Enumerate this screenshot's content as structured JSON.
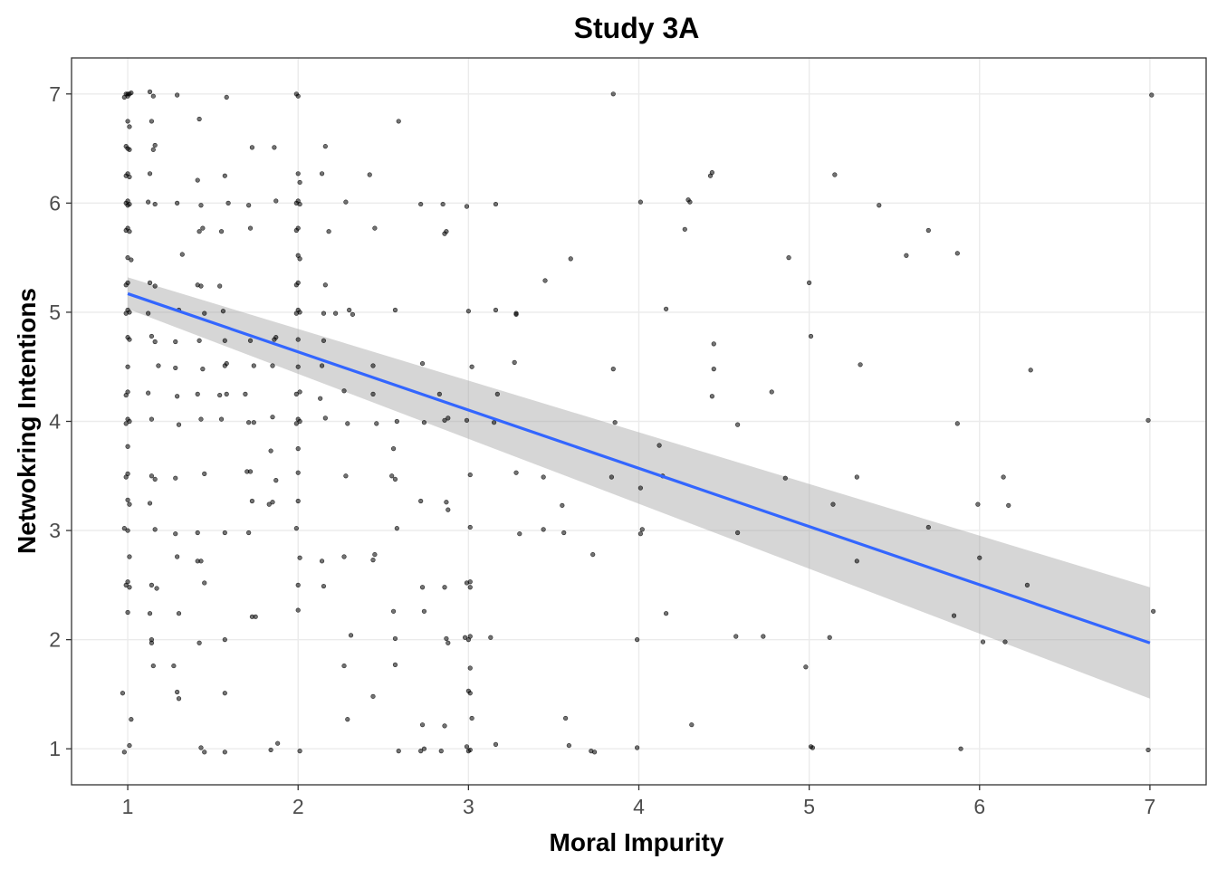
{
  "chart_data": {
    "type": "scatter",
    "title": "Study 3A",
    "xlabel": "Moral Impurity",
    "ylabel": "Netwokring Intentions",
    "xlim": [
      0.67,
      7.33
    ],
    "ylim": [
      0.67,
      7.33
    ],
    "xticks": [
      1,
      2,
      3,
      4,
      5,
      6,
      7
    ],
    "yticks": [
      1,
      2,
      3,
      4,
      5,
      6,
      7
    ],
    "grid": true,
    "colors": {
      "points": "#000000",
      "trend": "#3366FF",
      "band": "#999999",
      "grid": "#EBEBEB",
      "frame": "#333333"
    },
    "trend": {
      "x": [
        1,
        7
      ],
      "y": [
        5.17,
        1.97
      ],
      "ci_lower": [
        5.03,
        1.46
      ],
      "ci_upper": [
        5.32,
        2.48
      ]
    },
    "points": [
      [
        1,
        7
      ],
      [
        1.01,
        7
      ],
      [
        0.99,
        7
      ],
      [
        1,
        6.98
      ],
      [
        1.02,
        7.01
      ],
      [
        0.98,
        6.97
      ],
      [
        1,
        6.75
      ],
      [
        1.01,
        6.7
      ],
      [
        0.99,
        6.52
      ],
      [
        1,
        6.5
      ],
      [
        1.01,
        6.49
      ],
      [
        1,
        6.27
      ],
      [
        0.99,
        6.25
      ],
      [
        1.01,
        6.24
      ],
      [
        1,
        6.02
      ],
      [
        0.99,
        6
      ],
      [
        1.01,
        5.99
      ],
      [
        1,
        5.98
      ],
      [
        1,
        5.77
      ],
      [
        0.99,
        5.75
      ],
      [
        1.01,
        5.74
      ],
      [
        1,
        5.5
      ],
      [
        1.02,
        5.48
      ],
      [
        1,
        5.27
      ],
      [
        0.99,
        5.25
      ],
      [
        1,
        5.02
      ],
      [
        1.01,
        5
      ],
      [
        0.99,
        4.99
      ],
      [
        1,
        4.77
      ],
      [
        1.01,
        4.75
      ],
      [
        1,
        4.5
      ],
      [
        1,
        4.27
      ],
      [
        0.99,
        4.24
      ],
      [
        1,
        4.02
      ],
      [
        1.01,
        4
      ],
      [
        0.99,
        3.98
      ],
      [
        1,
        3.77
      ],
      [
        1,
        3.52
      ],
      [
        0.99,
        3.49
      ],
      [
        1,
        3.28
      ],
      [
        1.01,
        3.24
      ],
      [
        0.98,
        3.02
      ],
      [
        1,
        3
      ],
      [
        1.01,
        2.76
      ],
      [
        1,
        2.53
      ],
      [
        0.99,
        2.5
      ],
      [
        1.01,
        2.48
      ],
      [
        1,
        2.25
      ],
      [
        0.97,
        1.51
      ],
      [
        1.02,
        1.27
      ],
      [
        1.01,
        1.03
      ],
      [
        0.98,
        0.97
      ],
      [
        1.13,
        7.02
      ],
      [
        1.15,
        6.98
      ],
      [
        1.29,
        6.99
      ],
      [
        1.14,
        6.75
      ],
      [
        1.16,
        6.53
      ],
      [
        1.15,
        6.49
      ],
      [
        1.13,
        6.27
      ],
      [
        1.12,
        6.01
      ],
      [
        1.16,
        5.99
      ],
      [
        1.13,
        5.27
      ],
      [
        1.16,
        5.24
      ],
      [
        1.12,
        4.99
      ],
      [
        1.14,
        4.78
      ],
      [
        1.16,
        4.73
      ],
      [
        1.18,
        4.51
      ],
      [
        1.12,
        4.26
      ],
      [
        1.14,
        4.02
      ],
      [
        1.14,
        3.5
      ],
      [
        1.16,
        3.47
      ],
      [
        1.13,
        3.25
      ],
      [
        1.16,
        3.01
      ],
      [
        1.14,
        2.5
      ],
      [
        1.17,
        2.47
      ],
      [
        1.13,
        2.24
      ],
      [
        1.14,
        2
      ],
      [
        1.14,
        1.97
      ],
      [
        1.15,
        1.76
      ],
      [
        1.29,
        6.0
      ],
      [
        1.32,
        5.53
      ],
      [
        1.3,
        5.02
      ],
      [
        1.28,
        4.73
      ],
      [
        1.28,
        4.49
      ],
      [
        1.29,
        4.23
      ],
      [
        1.3,
        3.97
      ],
      [
        1.28,
        3.48
      ],
      [
        1.28,
        2.97
      ],
      [
        1.29,
        2.76
      ],
      [
        1.3,
        2.24
      ],
      [
        1.27,
        1.76
      ],
      [
        1.29,
        1.52
      ],
      [
        1.3,
        1.46
      ],
      [
        1.42,
        6.77
      ],
      [
        1.41,
        6.21
      ],
      [
        1.43,
        5.98
      ],
      [
        1.44,
        5.77
      ],
      [
        1.42,
        5.74
      ],
      [
        1.41,
        5.25
      ],
      [
        1.43,
        5.24
      ],
      [
        1.45,
        4.99
      ],
      [
        1.42,
        4.74
      ],
      [
        1.44,
        4.48
      ],
      [
        1.41,
        4.25
      ],
      [
        1.43,
        4.02
      ],
      [
        1.45,
        3.52
      ],
      [
        1.41,
        2.98
      ],
      [
        1.41,
        2.72
      ],
      [
        1.43,
        2.72
      ],
      [
        1.45,
        2.52
      ],
      [
        1.42,
        1.97
      ],
      [
        1.43,
        1.01
      ],
      [
        1.45,
        0.97
      ],
      [
        1.58,
        6.97
      ],
      [
        1.57,
        6.25
      ],
      [
        1.59,
        6.0
      ],
      [
        1.55,
        5.74
      ],
      [
        1.54,
        5.24
      ],
      [
        1.56,
        5.01
      ],
      [
        1.57,
        4.74
      ],
      [
        1.58,
        4.53
      ],
      [
        1.57,
        4.51
      ],
      [
        1.54,
        4.24
      ],
      [
        1.58,
        4.25
      ],
      [
        1.55,
        4.02
      ],
      [
        1.57,
        2.98
      ],
      [
        1.57,
        2.0
      ],
      [
        1.57,
        1.51
      ],
      [
        1.57,
        0.97
      ],
      [
        1.73,
        6.51
      ],
      [
        1.71,
        5.98
      ],
      [
        1.72,
        5.77
      ],
      [
        1.72,
        4.74
      ],
      [
        1.74,
        4.51
      ],
      [
        1.69,
        4.25
      ],
      [
        1.74,
        3.99
      ],
      [
        1.71,
        3.99
      ],
      [
        1.7,
        3.54
      ],
      [
        1.72,
        3.54
      ],
      [
        1.73,
        3.27
      ],
      [
        1.71,
        2.98
      ],
      [
        1.73,
        2.21
      ],
      [
        1.75,
        2.21
      ],
      [
        1.86,
        6.51
      ],
      [
        1.87,
        6.02
      ],
      [
        1.86,
        4.75
      ],
      [
        1.87,
        4.77
      ],
      [
        1.85,
        4.51
      ],
      [
        1.85,
        4.04
      ],
      [
        1.84,
        3.73
      ],
      [
        1.87,
        3.46
      ],
      [
        1.83,
        3.24
      ],
      [
        1.85,
        3.26
      ],
      [
        1.88,
        1.05
      ],
      [
        1.84,
        0.99
      ],
      [
        2,
        6.98
      ],
      [
        1.99,
        7
      ],
      [
        2,
        6.27
      ],
      [
        2.01,
        6.19
      ],
      [
        2,
        6.02
      ],
      [
        1.99,
        6
      ],
      [
        2.01,
        5.99
      ],
      [
        2,
        5.77
      ],
      [
        1.99,
        5.75
      ],
      [
        2,
        5.52
      ],
      [
        2.01,
        5.49
      ],
      [
        2,
        5.27
      ],
      [
        1.99,
        5.25
      ],
      [
        2,
        5.02
      ],
      [
        2.01,
        5
      ],
      [
        1.99,
        4.99
      ],
      [
        2,
        4.75
      ],
      [
        2,
        4.5
      ],
      [
        2.01,
        4.27
      ],
      [
        1.99,
        4.25
      ],
      [
        2,
        4.02
      ],
      [
        2.01,
        4
      ],
      [
        1.99,
        3.98
      ],
      [
        2,
        3.75
      ],
      [
        2,
        3.53
      ],
      [
        2,
        3.27
      ],
      [
        1.99,
        3.02
      ],
      [
        2.01,
        2.75
      ],
      [
        2,
        2.5
      ],
      [
        2,
        2.27
      ],
      [
        2.01,
        0.98
      ],
      [
        2.16,
        6.52
      ],
      [
        2.14,
        6.27
      ],
      [
        2.18,
        5.74
      ],
      [
        2.16,
        5.25
      ],
      [
        2.15,
        4.99
      ],
      [
        2.15,
        4.74
      ],
      [
        2.14,
        4.51
      ],
      [
        2.13,
        4.21
      ],
      [
        2.16,
        4.03
      ],
      [
        2.14,
        2.72
      ],
      [
        2.15,
        2.49
      ],
      [
        2.22,
        4.99
      ],
      [
        2.28,
        6.01
      ],
      [
        2.3,
        5.02
      ],
      [
        2.32,
        4.98
      ],
      [
        2.27,
        4.28
      ],
      [
        2.29,
        3.98
      ],
      [
        2.28,
        3.5
      ],
      [
        2.27,
        2.76
      ],
      [
        2.31,
        2.04
      ],
      [
        2.27,
        1.76
      ],
      [
        2.29,
        1.27
      ],
      [
        2.42,
        6.26
      ],
      [
        2.45,
        5.77
      ],
      [
        2.44,
        4.51
      ],
      [
        2.44,
        4.25
      ],
      [
        2.46,
        3.98
      ],
      [
        2.44,
        2.73
      ],
      [
        2.45,
        2.78
      ],
      [
        2.44,
        1.48
      ],
      [
        2.59,
        6.75
      ],
      [
        2.57,
        5.02
      ],
      [
        2.58,
        4.0
      ],
      [
        2.56,
        3.75
      ],
      [
        2.57,
        3.47
      ],
      [
        2.55,
        3.5
      ],
      [
        2.58,
        3.02
      ],
      [
        2.56,
        2.26
      ],
      [
        2.57,
        2.01
      ],
      [
        2.57,
        1.77
      ],
      [
        2.59,
        0.98
      ],
      [
        2.72,
        5.99
      ],
      [
        2.73,
        4.53
      ],
      [
        2.74,
        3.99
      ],
      [
        2.72,
        3.27
      ],
      [
        2.73,
        2.48
      ],
      [
        2.74,
        2.26
      ],
      [
        2.73,
        1.22
      ],
      [
        2.74,
        1.0
      ],
      [
        2.72,
        0.98
      ],
      [
        2.85,
        5.99
      ],
      [
        2.87,
        5.74
      ],
      [
        2.86,
        5.72
      ],
      [
        2.83,
        4.25
      ],
      [
        2.86,
        4.01
      ],
      [
        2.88,
        4.03
      ],
      [
        2.87,
        3.26
      ],
      [
        2.88,
        3.19
      ],
      [
        2.86,
        2.48
      ],
      [
        2.87,
        2.01
      ],
      [
        2.88,
        1.97
      ],
      [
        2.86,
        1.21
      ],
      [
        2.84,
        0.98
      ],
      [
        2.99,
        5.97
      ],
      [
        3,
        5.01
      ],
      [
        3.02,
        4.5
      ],
      [
        2.99,
        4.01
      ],
      [
        3.01,
        3.51
      ],
      [
        3.01,
        3.03
      ],
      [
        2.99,
        2.52
      ],
      [
        3.01,
        2.48
      ],
      [
        3.01,
        2.53
      ],
      [
        2.98,
        2.02
      ],
      [
        3.01,
        2.03
      ],
      [
        3.0,
        2.0
      ],
      [
        3.01,
        1.74
      ],
      [
        3.0,
        1.53
      ],
      [
        3.01,
        1.51
      ],
      [
        3.02,
        1.28
      ],
      [
        2.99,
        1.02
      ],
      [
        3.01,
        0.99
      ],
      [
        3.0,
        0.98
      ],
      [
        3.16,
        5.99
      ],
      [
        3.16,
        5.02
      ],
      [
        3.17,
        4.25
      ],
      [
        3.15,
        3.99
      ],
      [
        3.13,
        2.02
      ],
      [
        3.16,
        1.04
      ],
      [
        3.28,
        4.99
      ],
      [
        3.27,
        4.54
      ],
      [
        3.28,
        3.53
      ],
      [
        3.3,
        2.97
      ],
      [
        3.28,
        4.98
      ],
      [
        3.45,
        5.29
      ],
      [
        3.44,
        3.49
      ],
      [
        3.44,
        3.01
      ],
      [
        3.55,
        3.23
      ],
      [
        3.56,
        2.98
      ],
      [
        3.57,
        1.28
      ],
      [
        3.59,
        1.03
      ],
      [
        3.6,
        5.49
      ],
      [
        3.73,
        2.78
      ],
      [
        3.72,
        0.98
      ],
      [
        3.74,
        0.97
      ],
      [
        3.85,
        7.0
      ],
      [
        3.85,
        4.48
      ],
      [
        3.86,
        3.99
      ],
      [
        3.84,
        3.49
      ],
      [
        4.01,
        6.01
      ],
      [
        4.01,
        3.39
      ],
      [
        4.02,
        3.01
      ],
      [
        4.01,
        2.97
      ],
      [
        3.99,
        2.0
      ],
      [
        3.99,
        1.01
      ],
      [
        4.12,
        3.78
      ],
      [
        4.14,
        3.5
      ],
      [
        4.16,
        2.24
      ],
      [
        4.16,
        5.03
      ],
      [
        4.27,
        5.76
      ],
      [
        4.29,
        6.03
      ],
      [
        4.3,
        6.01
      ],
      [
        4.31,
        1.22
      ],
      [
        4.42,
        6.25
      ],
      [
        4.43,
        6.28
      ],
      [
        4.44,
        4.71
      ],
      [
        4.44,
        4.48
      ],
      [
        4.43,
        4.23
      ],
      [
        4.58,
        3.97
      ],
      [
        4.58,
        2.98
      ],
      [
        4.57,
        2.03
      ],
      [
        4.73,
        2.03
      ],
      [
        4.78,
        4.27
      ],
      [
        4.86,
        3.48
      ],
      [
        4.88,
        5.5
      ],
      [
        4.98,
        1.75
      ],
      [
        5.0,
        5.27
      ],
      [
        5.01,
        4.78
      ],
      [
        5.01,
        1.02
      ],
      [
        5.02,
        1.01
      ],
      [
        5.15,
        6.26
      ],
      [
        5.14,
        3.24
      ],
      [
        5.12,
        2.02
      ],
      [
        5.3,
        4.52
      ],
      [
        5.28,
        3.49
      ],
      [
        5.28,
        2.72
      ],
      [
        5.41,
        5.98
      ],
      [
        5.57,
        5.52
      ],
      [
        5.7,
        5.75
      ],
      [
        5.7,
        3.03
      ],
      [
        5.87,
        5.54
      ],
      [
        5.87,
        3.98
      ],
      [
        5.85,
        2.22
      ],
      [
        5.89,
        1.0
      ],
      [
        5.99,
        3.24
      ],
      [
        6.0,
        2.75
      ],
      [
        6.02,
        1.98
      ],
      [
        6.14,
        3.49
      ],
      [
        6.15,
        1.98
      ],
      [
        6.17,
        3.23
      ],
      [
        6.28,
        2.5
      ],
      [
        6.3,
        4.47
      ],
      [
        6.99,
        4.01
      ],
      [
        7.01,
        6.99
      ],
      [
        7.02,
        2.26
      ],
      [
        6.99,
        0.99
      ]
    ]
  }
}
